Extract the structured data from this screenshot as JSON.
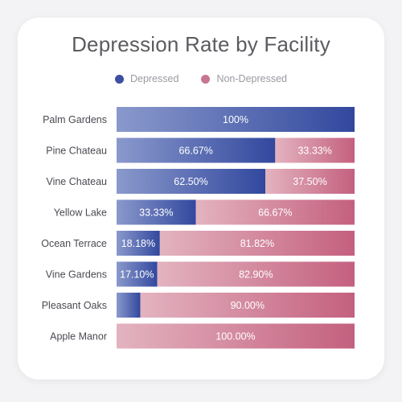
{
  "chart_data": {
    "type": "bar",
    "orientation": "horizontal",
    "stacked": true,
    "title": "Depression Rate by Facility",
    "legend_position": "top-center",
    "grid": false,
    "xlim": [
      0,
      100
    ],
    "categories": [
      "Palm Gardens",
      "Pine Chateau",
      "Vine Chateau",
      "Yellow Lake",
      "Ocean Terrace",
      "Vine Gardens",
      "Pleasant Oaks",
      "Apple Manor"
    ],
    "series": [
      {
        "name": "Depressed",
        "color": "#3d4fa0",
        "values": [
          100,
          66.67,
          62.5,
          33.33,
          18.18,
          17.1,
          10,
          0
        ],
        "labels": [
          "100%",
          "66.67%",
          "62.50%",
          "33.33%",
          "18.18%",
          "17.10%",
          "",
          ""
        ]
      },
      {
        "name": "Non-Depressed",
        "color": "#c9758f",
        "values": [
          0,
          33.33,
          37.5,
          66.67,
          81.82,
          82.9,
          90,
          100
        ],
        "labels": [
          "",
          "33.33%",
          "37.50%",
          "66.67%",
          "81.82%",
          "82.90%",
          "90.00%",
          "100.00%"
        ]
      }
    ]
  }
}
